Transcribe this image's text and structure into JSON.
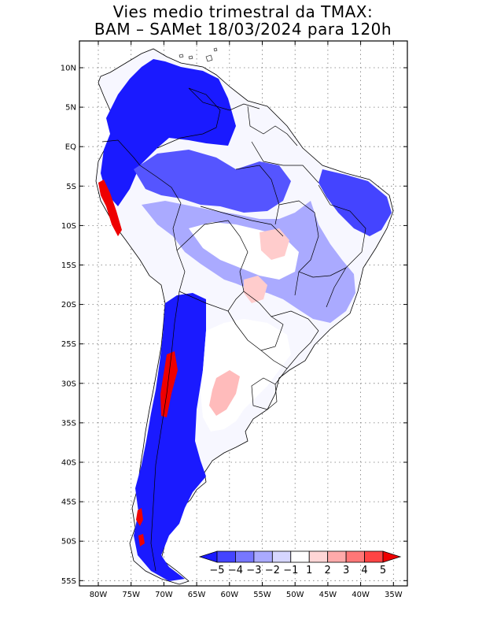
{
  "title_line1": "Vies medio trimestral da TMAX:",
  "title_line2": "BAM – SAMet 18/03/2024  para 120h",
  "map": {
    "lat_labels": [
      "10N",
      "5N",
      "EQ",
      "5S",
      "10S",
      "15S",
      "20S",
      "25S",
      "30S",
      "35S",
      "40S",
      "45S",
      "50S",
      "55S"
    ],
    "lon_labels": [
      "80W",
      "75W",
      "70W",
      "65W",
      "60W",
      "55W",
      "50W",
      "45W",
      "40W",
      "35W"
    ],
    "grid": "dotted"
  },
  "colorbar": {
    "labels": [
      "−5",
      "−4",
      "−3",
      "−2",
      "−1",
      "1",
      "2",
      "3",
      "4",
      "5"
    ],
    "colors": [
      "#1a1aff",
      "#4444ff",
      "#7777ff",
      "#aaaaff",
      "#d6d6ff",
      "#ffffff",
      "#ffd6d6",
      "#ffaaaa",
      "#ff7777",
      "#ff4444",
      "#ee0000"
    ]
  }
}
